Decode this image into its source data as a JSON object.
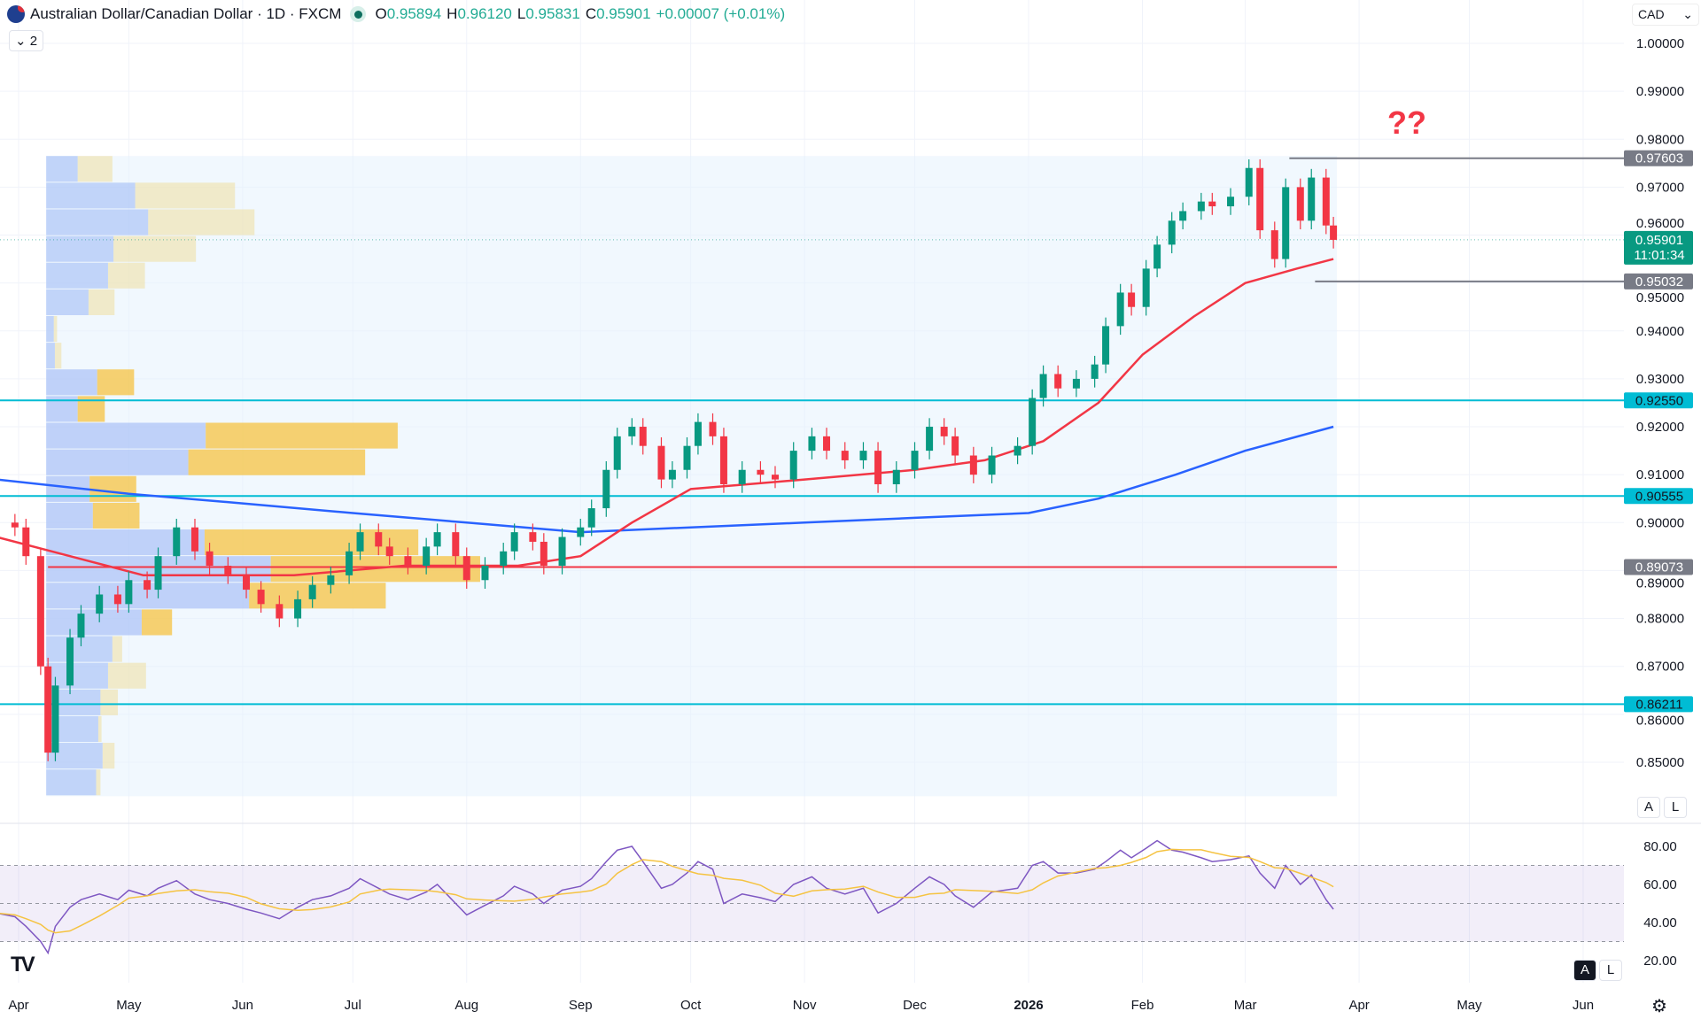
{
  "header": {
    "symbol_title": "Australian Dollar/Canadian Dollar · 1D · FXCM",
    "open_label": "O",
    "open": "0.95894",
    "high_label": "H",
    "high": "0.96120",
    "low_label": "L",
    "low": "0.95831",
    "close_label": "C",
    "close": "0.95901",
    "change": "+0.00007 (+0.01%)",
    "collapse_count": "2",
    "currency": "CAD",
    "currency_chevron": "⌄"
  },
  "annotation": "??",
  "buttons": {
    "auto": "A",
    "log": "L",
    "auto2": "A",
    "log2": "L",
    "gear": "⚙"
  },
  "logo": "TV",
  "chart_data": {
    "type": "candlestick",
    "price_ticks": [
      "1.00000",
      "0.99000",
      "0.98000",
      "0.97000",
      "0.96000",
      "0.95000",
      "0.94000",
      "0.93000",
      "0.92000",
      "0.91000",
      "0.90000",
      "0.89000",
      "0.88000",
      "0.87000",
      "0.86000",
      "0.85000"
    ],
    "price_range": [
      0.8435,
      1.0
    ],
    "time_ticks": [
      {
        "label": "Apr",
        "date": "2025-04-01"
      },
      {
        "label": "May",
        "date": "2025-05-01"
      },
      {
        "label": "Jun",
        "date": "2025-06-01"
      },
      {
        "label": "Jul",
        "date": "2025-07-01"
      },
      {
        "label": "Aug",
        "date": "2025-08-01"
      },
      {
        "label": "Sep",
        "date": "2025-09-01"
      },
      {
        "label": "Oct",
        "date": "2025-10-01"
      },
      {
        "label": "Nov",
        "date": "2025-11-01"
      },
      {
        "label": "Dec",
        "date": "2025-12-01"
      },
      {
        "label": "2026",
        "date": "2026-01-01",
        "bold": true
      },
      {
        "label": "Feb",
        "date": "2026-02-01"
      },
      {
        "label": "Mar",
        "date": "2026-03-01"
      },
      {
        "label": "Apr",
        "date": "2026-04-01"
      },
      {
        "label": "May",
        "date": "2026-05-01"
      },
      {
        "label": "Jun",
        "date": "2026-06-01"
      }
    ],
    "closes": [
      [
        "2025-03-26",
        0.9
      ],
      [
        "2025-03-31",
        0.899
      ],
      [
        "2025-04-03",
        0.893
      ],
      [
        "2025-04-07",
        0.87
      ],
      [
        "2025-04-09",
        0.852
      ],
      [
        "2025-04-11",
        0.866
      ],
      [
        "2025-04-15",
        0.876
      ],
      [
        "2025-04-18",
        0.881
      ],
      [
        "2025-04-23",
        0.885
      ],
      [
        "2025-04-28",
        0.883
      ],
      [
        "2025-05-01",
        0.888
      ],
      [
        "2025-05-06",
        0.886
      ],
      [
        "2025-05-09",
        0.893
      ],
      [
        "2025-05-14",
        0.899
      ],
      [
        "2025-05-19",
        0.894
      ],
      [
        "2025-05-23",
        0.891
      ],
      [
        "2025-05-28",
        0.889
      ],
      [
        "2025-06-02",
        0.886
      ],
      [
        "2025-06-06",
        0.883
      ],
      [
        "2025-06-11",
        0.88
      ],
      [
        "2025-06-16",
        0.884
      ],
      [
        "2025-06-20",
        0.887
      ],
      [
        "2025-06-25",
        0.889
      ],
      [
        "2025-06-30",
        0.894
      ],
      [
        "2025-07-03",
        0.898
      ],
      [
        "2025-07-08",
        0.895
      ],
      [
        "2025-07-11",
        0.893
      ],
      [
        "2025-07-16",
        0.891
      ],
      [
        "2025-07-21",
        0.895
      ],
      [
        "2025-07-24",
        0.898
      ],
      [
        "2025-07-29",
        0.893
      ],
      [
        "2025-08-01",
        0.888
      ],
      [
        "2025-08-06",
        0.891
      ],
      [
        "2025-08-11",
        0.894
      ],
      [
        "2025-08-14",
        0.898
      ],
      [
        "2025-08-19",
        0.896
      ],
      [
        "2025-08-22",
        0.891
      ],
      [
        "2025-08-27",
        0.897
      ],
      [
        "2025-09-01",
        0.899
      ],
      [
        "2025-09-04",
        0.903
      ],
      [
        "2025-09-08",
        0.911
      ],
      [
        "2025-09-11",
        0.918
      ],
      [
        "2025-09-15",
        0.92
      ],
      [
        "2025-09-18",
        0.916
      ],
      [
        "2025-09-23",
        0.909
      ],
      [
        "2025-09-26",
        0.911
      ],
      [
        "2025-09-30",
        0.916
      ],
      [
        "2025-10-03",
        0.921
      ],
      [
        "2025-10-07",
        0.918
      ],
      [
        "2025-10-10",
        0.908
      ],
      [
        "2025-10-15",
        0.911
      ],
      [
        "2025-10-20",
        0.91
      ],
      [
        "2025-10-24",
        0.909
      ],
      [
        "2025-10-29",
        0.915
      ],
      [
        "2025-11-03",
        0.918
      ],
      [
        "2025-11-07",
        0.915
      ],
      [
        "2025-11-12",
        0.913
      ],
      [
        "2025-11-17",
        0.915
      ],
      [
        "2025-11-21",
        0.908
      ],
      [
        "2025-11-26",
        0.911
      ],
      [
        "2025-12-01",
        0.915
      ],
      [
        "2025-12-05",
        0.92
      ],
      [
        "2025-12-09",
        0.918
      ],
      [
        "2025-12-12",
        0.914
      ],
      [
        "2025-12-17",
        0.91
      ],
      [
        "2025-12-22",
        0.914
      ],
      [
        "2025-12-29",
        0.916
      ],
      [
        "2026-01-02",
        0.926
      ],
      [
        "2026-01-05",
        0.931
      ],
      [
        "2026-01-09",
        0.928
      ],
      [
        "2026-01-14",
        0.93
      ],
      [
        "2026-01-19",
        0.933
      ],
      [
        "2026-01-22",
        0.941
      ],
      [
        "2026-01-26",
        0.948
      ],
      [
        "2026-01-29",
        0.945
      ],
      [
        "2026-02-02",
        0.953
      ],
      [
        "2026-02-05",
        0.958
      ],
      [
        "2026-02-09",
        0.963
      ],
      [
        "2026-02-12",
        0.965
      ],
      [
        "2026-02-17",
        0.967
      ],
      [
        "2026-02-20",
        0.966
      ],
      [
        "2026-02-25",
        0.968
      ],
      [
        "2026-03-02",
        0.974
      ],
      [
        "2026-03-05",
        0.961
      ],
      [
        "2026-03-09",
        0.955
      ],
      [
        "2026-03-12",
        0.97
      ],
      [
        "2026-03-16",
        0.963
      ],
      [
        "2026-03-19",
        0.972
      ],
      [
        "2026-03-23",
        0.962
      ],
      [
        "2026-03-25",
        0.959
      ]
    ],
    "ema_red": [
      [
        "2025-03-26",
        0.897
      ],
      [
        "2025-04-15",
        0.893
      ],
      [
        "2025-05-05",
        0.889
      ],
      [
        "2025-06-15",
        0.889
      ],
      [
        "2025-07-15",
        0.891
      ],
      [
        "2025-08-15",
        0.891
      ],
      [
        "2025-09-01",
        0.893
      ],
      [
        "2025-09-15",
        0.9
      ],
      [
        "2025-10-01",
        0.907
      ],
      [
        "2025-11-01",
        0.909
      ],
      [
        "2025-12-01",
        0.911
      ],
      [
        "2025-12-20",
        0.913
      ],
      [
        "2026-01-05",
        0.917
      ],
      [
        "2026-01-20",
        0.925
      ],
      [
        "2026-02-01",
        0.935
      ],
      [
        "2026-02-15",
        0.943
      ],
      [
        "2026-03-01",
        0.95
      ],
      [
        "2026-03-15",
        0.953
      ],
      [
        "2026-03-25",
        0.955
      ]
    ],
    "sma_blue": [
      [
        "2025-03-26",
        0.909
      ],
      [
        "2025-05-01",
        0.906
      ],
      [
        "2025-06-01",
        0.904
      ],
      [
        "2025-07-01",
        0.902
      ],
      [
        "2025-08-01",
        0.9
      ],
      [
        "2025-09-01",
        0.898
      ],
      [
        "2025-10-01",
        0.899
      ],
      [
        "2025-11-01",
        0.9
      ],
      [
        "2025-12-01",
        0.901
      ],
      [
        "2026-01-01",
        0.902
      ],
      [
        "2026-01-20",
        0.905
      ],
      [
        "2026-02-10",
        0.91
      ],
      [
        "2026-03-01",
        0.915
      ],
      [
        "2026-03-25",
        0.92
      ]
    ],
    "levels": [
      {
        "price": 0.97603,
        "label": "0.97603",
        "color": "#787b86",
        "from": "2026-03-13"
      },
      {
        "price": 0.95032,
        "label": "0.95032",
        "color": "#787b86",
        "from": "2026-03-20"
      },
      {
        "price": 0.9255,
        "label": "0.92550",
        "color": "#00bcd4",
        "from": null
      },
      {
        "price": 0.90555,
        "label": "0.90555",
        "color": "#00bcd4",
        "from": null
      },
      {
        "price": 0.86211,
        "label": "0.86211",
        "color": "#00bcd4",
        "from": null
      },
      {
        "price": 0.89073,
        "label": "0.89073",
        "color": "#f23645",
        "from": "2025-04-09",
        "to": "2026-03-25",
        "label_bg": "#787b86"
      }
    ],
    "last_price": {
      "price": 0.95901,
      "label": "0.95901",
      "countdown": "11:01:34",
      "color": "#089981"
    },
    "volume_profile": {
      "top_price": 0.9765,
      "row_price": 0.005566,
      "from": "2025-04-09",
      "to": "2026-03-25",
      "value_area_rows": [
        8,
        9,
        10,
        11,
        12,
        13,
        14,
        15,
        16,
        17
      ],
      "rows": [
        [
          29,
          32
        ],
        [
          82,
          92
        ],
        [
          94,
          98
        ],
        [
          62,
          76
        ],
        [
          57,
          34
        ],
        [
          39,
          24
        ],
        [
          7,
          3
        ],
        [
          8,
          6
        ],
        [
          47,
          34
        ],
        [
          29,
          25
        ],
        [
          147,
          177
        ],
        [
          131,
          163
        ],
        [
          40,
          43
        ],
        [
          43,
          43
        ],
        [
          146,
          197
        ],
        [
          207,
          193
        ],
        [
          187,
          126
        ],
        [
          88,
          28
        ],
        [
          61,
          9
        ],
        [
          57,
          35
        ],
        [
          50,
          16
        ],
        [
          48,
          3
        ],
        [
          52,
          11
        ],
        [
          46,
          4
        ]
      ]
    },
    "rsi": {
      "ticks": [
        "80.00",
        "60.00",
        "40.00",
        "20.00"
      ],
      "band": [
        30,
        70
      ],
      "mid": 50,
      "values": [
        45,
        43,
        38,
        30,
        24,
        38,
        48,
        52,
        55,
        52,
        57,
        54,
        58,
        62,
        55,
        52,
        50,
        47,
        45,
        42,
        48,
        52,
        54,
        58,
        63,
        58,
        55,
        52,
        56,
        60,
        50,
        44,
        49,
        54,
        59,
        55,
        50,
        57,
        59,
        63,
        72,
        78,
        80,
        72,
        58,
        60,
        66,
        72,
        68,
        50,
        55,
        53,
        51,
        60,
        64,
        58,
        55,
        58,
        45,
        50,
        58,
        64,
        60,
        54,
        48,
        56,
        58,
        70,
        72,
        66,
        66,
        68,
        72,
        78,
        74,
        79,
        83,
        78,
        77,
        74,
        72,
        73,
        75,
        66,
        58,
        70,
        60,
        65,
        52,
        47
      ]
    }
  }
}
